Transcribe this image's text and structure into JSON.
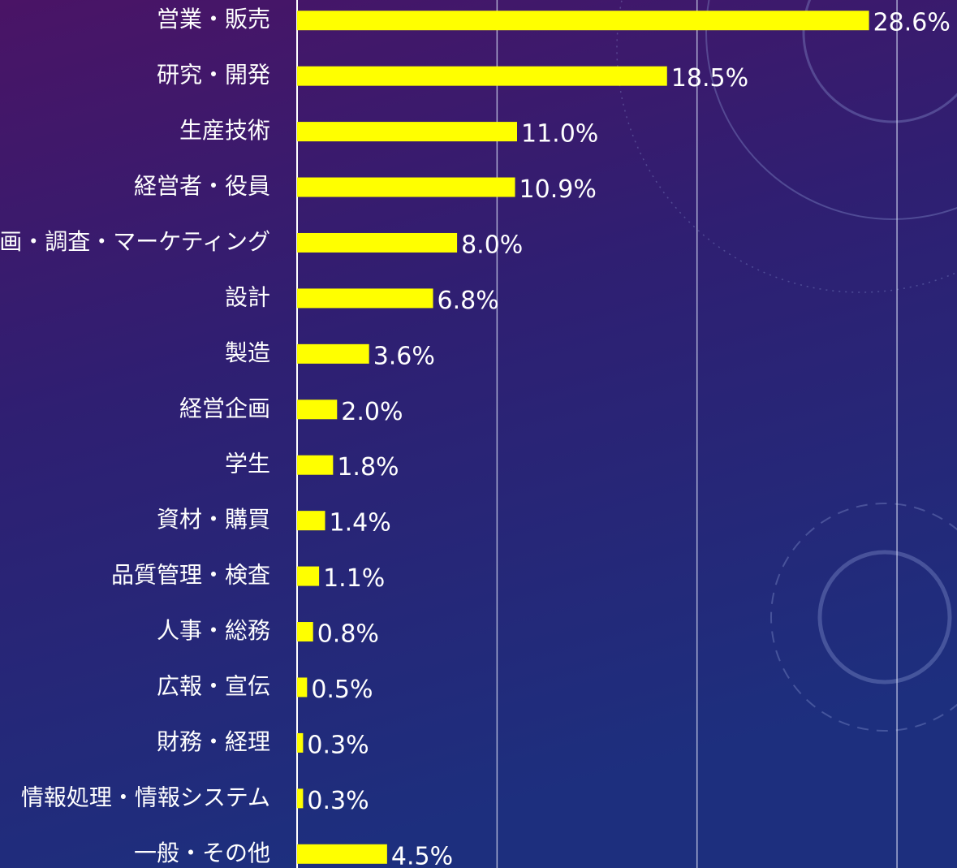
{
  "chart_data": {
    "type": "barh",
    "categories": [
      "営業・販売",
      "研究・開発",
      "生産技術",
      "経営者・役員",
      "企画・調査・マーケティング",
      "設計",
      "製造",
      "経営企画",
      "学生",
      "資材・購買",
      "品質管理・検査",
      "人事・総務",
      "広報・宣伝",
      "財務・経理",
      "情報処理・情報システム",
      "一般・その他"
    ],
    "values": [
      28.6,
      18.5,
      11.0,
      10.9,
      8.0,
      6.8,
      3.6,
      2.0,
      1.8,
      1.4,
      1.1,
      0.8,
      0.5,
      0.3,
      0.3,
      4.5
    ],
    "value_labels": [
      "28.6%",
      "18.5%",
      "11.0%",
      "10.9%",
      "8.0%",
      "6.8%",
      "3.6%",
      "2.0%",
      "1.8%",
      "1.4%",
      "1.1%",
      "0.8%",
      "0.5%",
      "0.3%",
      "0.3%",
      "4.5%"
    ],
    "color": "#ffff00",
    "xlim": [
      0,
      33
    ],
    "xticks": [
      0,
      10,
      20,
      30
    ],
    "grid": true
  }
}
